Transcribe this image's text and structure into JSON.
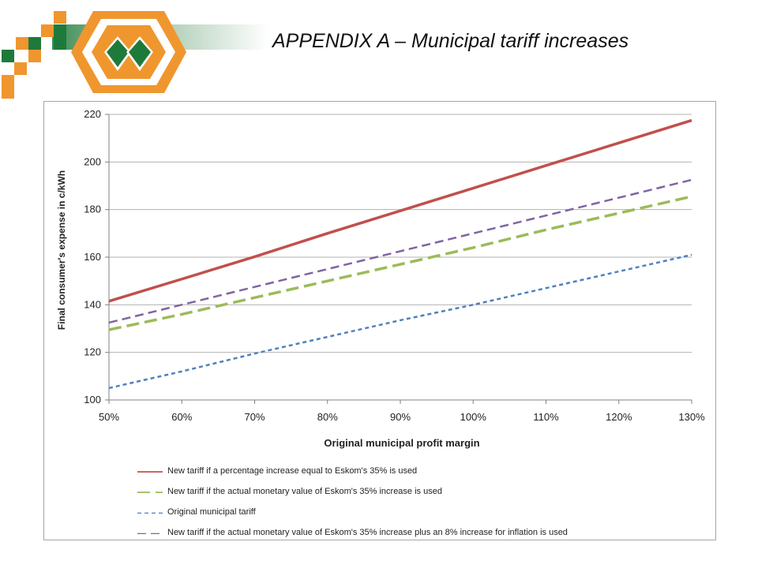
{
  "slide": {
    "title": "APPENDIX A – Municipal  tariff increases"
  },
  "colors": {
    "logo_orange": "#F0962E",
    "logo_green": "#1E7A3A",
    "grid": "#b3b3b3",
    "axis": "#808080"
  },
  "chart_data": {
    "type": "line",
    "xlabel": "Original municipal profit margin",
    "ylabel": "Final consumer's expense in c/kWh",
    "xlim": [
      50,
      130
    ],
    "ylim": [
      100,
      220
    ],
    "x_tick_labels": [
      "50%",
      "60%",
      "70%",
      "80%",
      "90%",
      "100%",
      "110%",
      "120%",
      "130%"
    ],
    "y_tick_labels": [
      "100",
      "120",
      "140",
      "160",
      "180",
      "200",
      "220"
    ],
    "grid": "horizontal",
    "legend_position": "bottom",
    "x": [
      50,
      60,
      70,
      80,
      90,
      100,
      110,
      120,
      130
    ],
    "series": [
      {
        "name": "New tariff if a percentage increase equal to Eskom's 35% is used",
        "color": "#C0504D",
        "style": "solid",
        "values": [
          141.5,
          150.8,
          160.2,
          170.0,
          179.5,
          189.0,
          198.5,
          208.0,
          217.5
        ]
      },
      {
        "name": "New tariff if the actual monetary value of Eskom's 35% increase is used",
        "color": "#9BBB59",
        "style": "long-dash",
        "values": [
          129.5,
          136.0,
          143.0,
          150.0,
          157.0,
          164.0,
          171.5,
          178.5,
          185.5
        ]
      },
      {
        "name": "Original municipal tariff",
        "color": "#4F81BD",
        "style": "short-dash",
        "values": [
          105.0,
          112.0,
          119.5,
          126.5,
          133.5,
          140.0,
          147.0,
          154.0,
          161.0
        ]
      },
      {
        "name": "New tariff if the actual monetary value of Eskom's 35% increase plus an 8% increase for inflation is used",
        "color": "#8064A2",
        "style": "medium-dash",
        "values": [
          132.5,
          140.0,
          147.5,
          155.0,
          162.5,
          170.0,
          177.5,
          185.0,
          192.5
        ]
      }
    ]
  }
}
